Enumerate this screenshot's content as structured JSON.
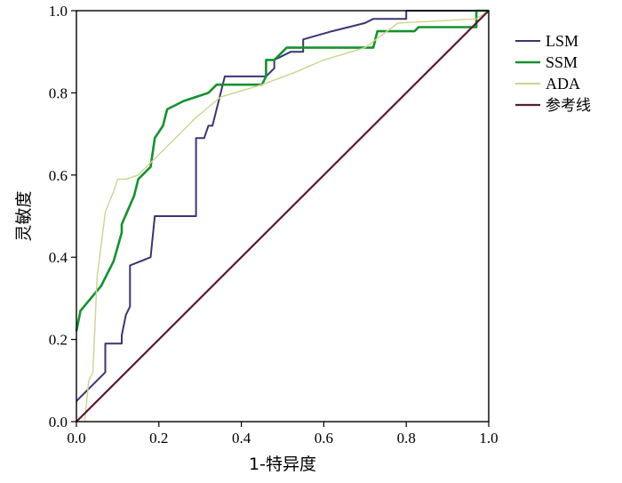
{
  "chart_data": {
    "type": "line",
    "title": "",
    "xlabel": "1-特异度",
    "ylabel": "灵敏度",
    "xlim": [
      0,
      1
    ],
    "ylim": [
      0,
      1
    ],
    "x_ticks": [
      "0.0",
      "0.2",
      "0.4",
      "0.6",
      "0.8",
      "1.0"
    ],
    "y_ticks": [
      "0.0",
      "0.2",
      "0.4",
      "0.6",
      "0.8",
      "1.0"
    ],
    "grid": false,
    "legend_position": "right",
    "series": [
      {
        "name": "LSM",
        "color": "#3a3573",
        "stroke_width": 2,
        "points": [
          [
            0,
            0.05
          ],
          [
            0.07,
            0.12
          ],
          [
            0.07,
            0.19
          ],
          [
            0.11,
            0.19
          ],
          [
            0.11,
            0.21
          ],
          [
            0.12,
            0.26
          ],
          [
            0.13,
            0.28
          ],
          [
            0.13,
            0.38
          ],
          [
            0.18,
            0.4
          ],
          [
            0.19,
            0.5
          ],
          [
            0.29,
            0.5
          ],
          [
            0.29,
            0.69
          ],
          [
            0.31,
            0.69
          ],
          [
            0.32,
            0.72
          ],
          [
            0.33,
            0.72
          ],
          [
            0.35,
            0.8
          ],
          [
            0.36,
            0.84
          ],
          [
            0.46,
            0.84
          ],
          [
            0.48,
            0.86
          ],
          [
            0.48,
            0.88
          ],
          [
            0.52,
            0.9
          ],
          [
            0.55,
            0.9
          ],
          [
            0.55,
            0.93
          ],
          [
            0.62,
            0.95
          ],
          [
            0.7,
            0.97
          ],
          [
            0.72,
            0.98
          ],
          [
            0.8,
            0.98
          ],
          [
            0.8,
            1.0
          ],
          [
            1.0,
            1.0
          ]
        ]
      },
      {
        "name": "SSM",
        "color": "#13922e",
        "stroke_width": 2.6,
        "points": [
          [
            0,
            0.22
          ],
          [
            0.01,
            0.27
          ],
          [
            0.06,
            0.33
          ],
          [
            0.09,
            0.39
          ],
          [
            0.11,
            0.46
          ],
          [
            0.11,
            0.48
          ],
          [
            0.14,
            0.55
          ],
          [
            0.15,
            0.59
          ],
          [
            0.18,
            0.62
          ],
          [
            0.19,
            0.69
          ],
          [
            0.21,
            0.72
          ],
          [
            0.22,
            0.76
          ],
          [
            0.26,
            0.78
          ],
          [
            0.32,
            0.8
          ],
          [
            0.34,
            0.82
          ],
          [
            0.45,
            0.82
          ],
          [
            0.46,
            0.84
          ],
          [
            0.46,
            0.88
          ],
          [
            0.48,
            0.88
          ],
          [
            0.51,
            0.91
          ],
          [
            0.72,
            0.91
          ],
          [
            0.73,
            0.95
          ],
          [
            0.82,
            0.95
          ],
          [
            0.83,
            0.96
          ],
          [
            0.97,
            0.96
          ],
          [
            0.97,
            1.0
          ],
          [
            1.0,
            1.0
          ]
        ]
      },
      {
        "name": "ADA",
        "color": "#cdd48f",
        "stroke_width": 1.4,
        "points": [
          [
            0.02,
            0
          ],
          [
            0.03,
            0.1
          ],
          [
            0.04,
            0.12
          ],
          [
            0.05,
            0.35
          ],
          [
            0.07,
            0.51
          ],
          [
            0.09,
            0.56
          ],
          [
            0.1,
            0.59
          ],
          [
            0.12,
            0.59
          ],
          [
            0.15,
            0.6
          ],
          [
            0.21,
            0.66
          ],
          [
            0.29,
            0.74
          ],
          [
            0.35,
            0.79
          ],
          [
            0.45,
            0.82
          ],
          [
            0.53,
            0.85
          ],
          [
            0.6,
            0.88
          ],
          [
            0.7,
            0.91
          ],
          [
            0.78,
            0.97
          ],
          [
            0.97,
            0.98
          ],
          [
            1.0,
            1.0
          ]
        ]
      },
      {
        "name": "参考线",
        "color": "#5b1935",
        "stroke_width": 2.2,
        "points": [
          [
            0,
            0
          ],
          [
            1,
            1
          ]
        ]
      }
    ]
  }
}
